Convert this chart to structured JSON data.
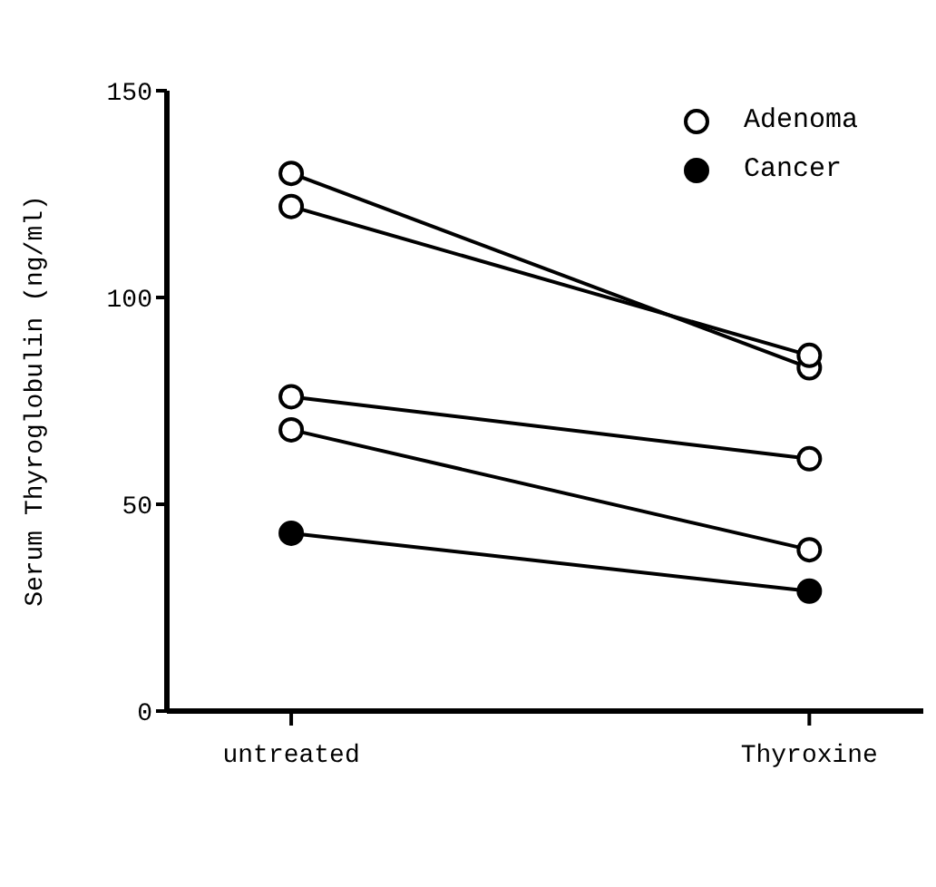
{
  "chart_data": {
    "type": "line",
    "ylabel": "Serum Thyroglobulin (ng/ml)",
    "categories": [
      "untreated",
      "Thyroxine"
    ],
    "series": [
      {
        "name": "Adenoma",
        "color": "#000000",
        "colors": [
          "#ffffff",
          "#ffffff"
        ],
        "values": [
          130,
          83
        ]
      },
      {
        "color": "#000000",
        "colors": [
          "#ffffff",
          "#ffffff"
        ],
        "values": [
          122,
          86
        ]
      },
      {
        "color": "#000000",
        "colors": [
          "#ffffff",
          "#ffffff"
        ],
        "values": [
          76,
          61
        ]
      },
      {
        "color": "#000000",
        "colors": [
          "#ffffff",
          "#ffffff"
        ],
        "values": [
          68,
          39
        ]
      },
      {
        "name": "Cancer",
        "color": "#000000",
        "colors": [
          "#000000",
          "#000000"
        ],
        "values": [
          43,
          29
        ]
      }
    ],
    "ylim": [
      0,
      150
    ],
    "yticks": [
      0,
      50,
      100,
      150
    ],
    "grid": false,
    "legend": "top right",
    "marker": "circle",
    "line_style": "solid"
  }
}
